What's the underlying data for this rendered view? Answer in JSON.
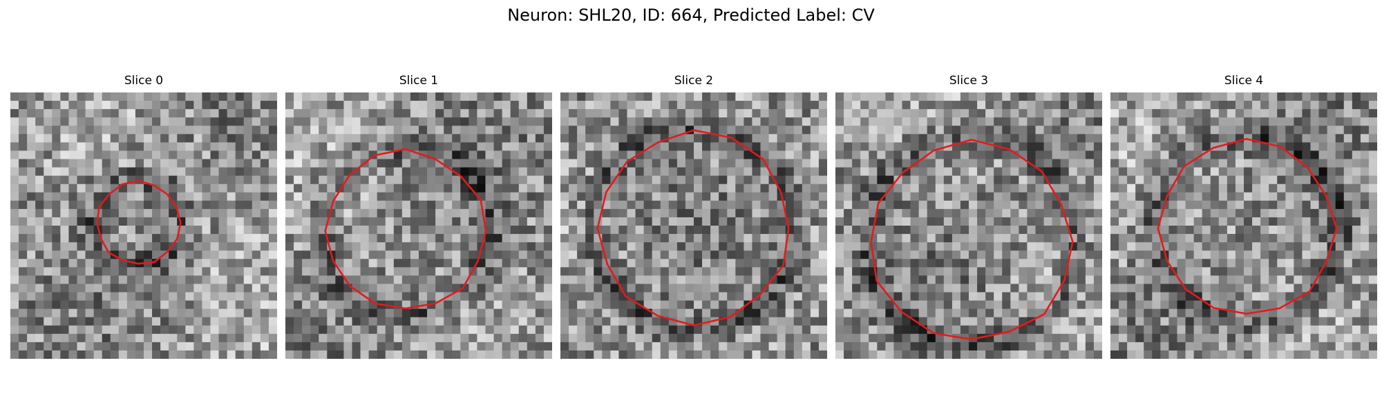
{
  "figure": {
    "title": "Neuron: SHL20, ID: 664, Predicted Label: CV"
  },
  "slices": [
    {
      "title": "Slice 0",
      "contour_radius": 0.31,
      "seed": 11
    },
    {
      "title": "Slice 1",
      "contour_radius": 0.6,
      "seed": 29
    },
    {
      "title": "Slice 2",
      "contour_radius": 0.72,
      "seed": 47
    },
    {
      "title": "Slice 3",
      "contour_radius": 0.75,
      "seed": 83
    },
    {
      "title": "Slice 4",
      "contour_radius": 0.66,
      "seed": 131
    }
  ],
  "colors": {
    "contour": "#e41a1c",
    "background": "#ffffff"
  }
}
